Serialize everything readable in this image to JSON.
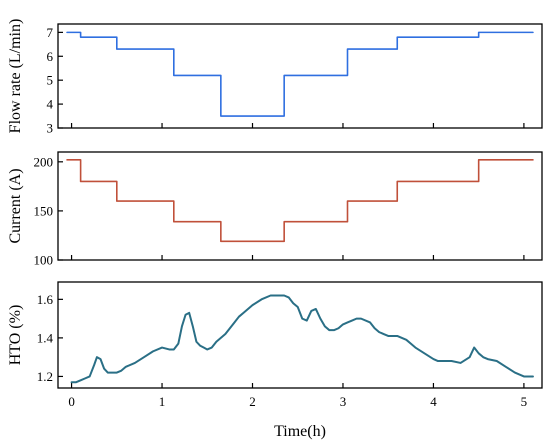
{
  "chart_data": [
    {
      "type": "line",
      "step": true,
      "xlabel": "",
      "ylabel": "Flow rate (L/min)",
      "xlim": [
        -0.15,
        5.2
      ],
      "ylim": [
        3,
        7.35
      ],
      "xticks": [
        0,
        1,
        2,
        3,
        4,
        5
      ],
      "yticks": [
        3,
        4,
        5,
        6,
        7
      ],
      "show_xtick_labels": false,
      "grid": false,
      "series": [
        {
          "color": "#2f6fe0",
          "x": [
            -0.05,
            0.1,
            0.1,
            0.5,
            0.5,
            1.13,
            1.13,
            1.65,
            1.65,
            2.35,
            2.35,
            3.05,
            3.05,
            3.6,
            3.6,
            4.5,
            4.5,
            5.1
          ],
          "y": [
            7.0,
            7.0,
            6.8,
            6.8,
            6.3,
            6.3,
            5.2,
            5.2,
            3.5,
            3.5,
            5.2,
            5.2,
            6.3,
            6.3,
            6.8,
            6.8,
            7.0,
            7.0
          ]
        }
      ]
    },
    {
      "type": "line",
      "step": true,
      "xlabel": "",
      "ylabel": "Current (A)",
      "xlim": [
        -0.15,
        5.2
      ],
      "ylim": [
        100,
        210
      ],
      "xticks": [
        0,
        1,
        2,
        3,
        4,
        5
      ],
      "yticks": [
        100,
        150,
        200
      ],
      "show_xtick_labels": false,
      "grid": false,
      "series": [
        {
          "color": "#c0503a",
          "x": [
            -0.05,
            0.1,
            0.1,
            0.5,
            0.5,
            1.13,
            1.13,
            1.65,
            1.65,
            2.35,
            2.35,
            3.05,
            3.05,
            3.6,
            3.6,
            4.5,
            4.5,
            5.1
          ],
          "y": [
            202,
            202,
            180,
            180,
            160,
            160,
            139,
            139,
            119,
            119,
            139,
            139,
            160,
            160,
            180,
            180,
            202,
            202
          ]
        }
      ]
    },
    {
      "type": "line",
      "step": false,
      "xlabel": "Time(h)",
      "ylabel": "HTO (%)",
      "xlim": [
        -0.15,
        5.2
      ],
      "ylim": [
        1.14,
        1.69
      ],
      "xticks": [
        0,
        1,
        2,
        3,
        4,
        5
      ],
      "yticks": [
        1.2,
        1.4,
        1.6
      ],
      "show_xtick_labels": true,
      "grid": false,
      "series": [
        {
          "color": "#2a6f86",
          "x": [
            0.0,
            0.05,
            0.1,
            0.15,
            0.2,
            0.25,
            0.28,
            0.32,
            0.36,
            0.4,
            0.45,
            0.5,
            0.55,
            0.6,
            0.7,
            0.8,
            0.9,
            1.0,
            1.08,
            1.13,
            1.18,
            1.22,
            1.26,
            1.3,
            1.34,
            1.38,
            1.42,
            1.46,
            1.5,
            1.55,
            1.6,
            1.65,
            1.7,
            1.75,
            1.8,
            1.85,
            1.9,
            2.0,
            2.1,
            2.2,
            2.3,
            2.35,
            2.4,
            2.45,
            2.5,
            2.55,
            2.6,
            2.65,
            2.7,
            2.75,
            2.8,
            2.85,
            2.9,
            2.95,
            3.0,
            3.05,
            3.1,
            3.15,
            3.2,
            3.3,
            3.35,
            3.4,
            3.45,
            3.5,
            3.55,
            3.6,
            3.7,
            3.75,
            3.8,
            3.9,
            4.0,
            4.05,
            4.1,
            4.2,
            4.3,
            4.4,
            4.45,
            4.5,
            4.55,
            4.6,
            4.7,
            4.8,
            4.9,
            5.0,
            5.1
          ],
          "y": [
            1.17,
            1.17,
            1.18,
            1.19,
            1.2,
            1.26,
            1.3,
            1.29,
            1.24,
            1.22,
            1.22,
            1.22,
            1.23,
            1.25,
            1.27,
            1.3,
            1.33,
            1.35,
            1.34,
            1.34,
            1.37,
            1.46,
            1.52,
            1.53,
            1.46,
            1.38,
            1.36,
            1.35,
            1.34,
            1.35,
            1.38,
            1.4,
            1.42,
            1.45,
            1.48,
            1.51,
            1.53,
            1.57,
            1.6,
            1.62,
            1.62,
            1.62,
            1.61,
            1.58,
            1.56,
            1.5,
            1.49,
            1.54,
            1.55,
            1.5,
            1.46,
            1.44,
            1.44,
            1.45,
            1.47,
            1.48,
            1.49,
            1.5,
            1.5,
            1.48,
            1.45,
            1.43,
            1.42,
            1.41,
            1.41,
            1.41,
            1.39,
            1.37,
            1.35,
            1.32,
            1.29,
            1.28,
            1.28,
            1.28,
            1.27,
            1.3,
            1.35,
            1.32,
            1.3,
            1.29,
            1.28,
            1.25,
            1.22,
            1.2,
            1.2
          ]
        }
      ]
    }
  ]
}
